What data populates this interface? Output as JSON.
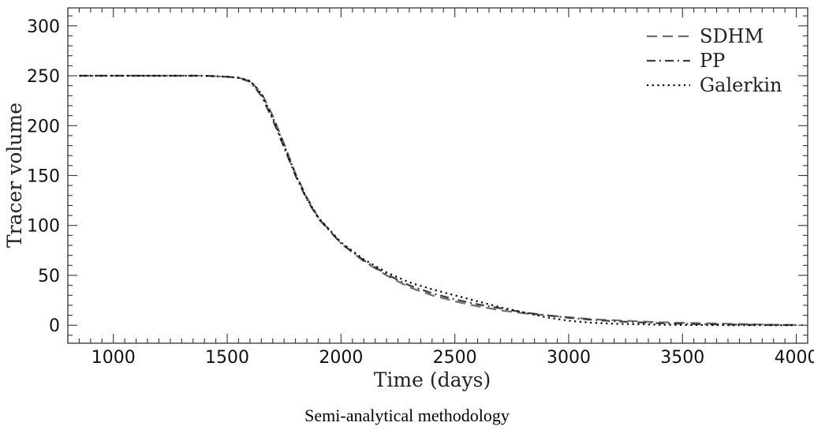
{
  "caption": "Semi-analytical methodology",
  "chart_data": {
    "type": "line",
    "xlabel": "Time (days)",
    "ylabel": "Tracer volume",
    "xlim": [
      800,
      4050
    ],
    "ylim": [
      -18,
      318
    ],
    "x_ticks": [
      1000,
      1500,
      2000,
      2500,
      3000,
      3500,
      4000
    ],
    "y_ticks": [
      0,
      50,
      100,
      150,
      200,
      250,
      300
    ],
    "x_tick_labels": [
      "1000",
      "1500",
      "2000",
      "2500",
      "3000",
      "3500",
      "4000"
    ],
    "y_tick_labels": [
      "0",
      "50",
      "100",
      "150",
      "200",
      "250",
      "300"
    ],
    "grid": false,
    "legend_position": "top-right",
    "series": [
      {
        "name": "SDHM",
        "dash": "dashed",
        "color": "#6e6e6e",
        "x": [
          850,
          1000,
          1200,
          1400,
          1500,
          1550,
          1600,
          1650,
          1700,
          1750,
          1800,
          1850,
          1900,
          2000,
          2100,
          2200,
          2300,
          2400,
          2500,
          2600,
          2700,
          2800,
          2900,
          3000,
          3100,
          3200,
          3300,
          3400,
          3500,
          3600,
          3700,
          3800,
          3900,
          4000,
          4030
        ],
        "y": [
          250,
          250,
          250,
          250,
          249,
          248,
          245,
          233,
          210,
          182,
          152,
          128,
          108,
          82,
          64,
          50,
          38,
          30,
          24,
          19,
          15,
          12,
          10,
          8,
          6,
          5,
          4,
          3,
          2.5,
          2,
          1.5,
          1,
          0.5,
          0.3,
          0.2
        ]
      },
      {
        "name": "PP",
        "dash": "dashdot",
        "color": "#3c3c3c",
        "x": [
          850,
          1000,
          1200,
          1400,
          1500,
          1550,
          1600,
          1650,
          1700,
          1750,
          1800,
          1850,
          1900,
          2000,
          2100,
          2200,
          2300,
          2400,
          2500,
          2600,
          2700,
          2800,
          2900,
          3000,
          3100,
          3200,
          3300,
          3400,
          3500,
          3600,
          3700,
          3800,
          3900,
          4000
        ],
        "y": [
          250,
          250,
          250,
          250,
          249,
          248,
          244,
          230,
          206,
          178,
          150,
          126,
          107,
          82,
          65,
          51,
          40,
          32,
          26,
          21,
          17,
          13,
          10,
          7.5,
          5.5,
          4,
          3,
          2,
          1.5,
          1,
          0.7,
          0.5,
          0.3,
          0.2
        ]
      },
      {
        "name": "Galerkin",
        "dash": "dotted",
        "color": "#000000",
        "x": [
          850,
          1000,
          1200,
          1400,
          1500,
          1550,
          1600,
          1650,
          1700,
          1750,
          1800,
          1850,
          1900,
          2000,
          2100,
          2200,
          2300,
          2400,
          2500,
          2600,
          2700,
          2800,
          2900,
          3000,
          3100,
          3200,
          3300,
          3400,
          3500,
          3600,
          3700,
          3800,
          3900,
          4000
        ],
        "y": [
          250,
          250,
          250,
          250,
          249,
          248,
          245,
          232,
          208,
          180,
          151,
          127,
          108,
          83,
          66,
          53,
          43,
          36,
          30,
          24,
          18,
          13,
          8,
          4.5,
          2.5,
          1.5,
          1,
          0.5,
          0.3,
          0.2,
          0.1,
          0.1,
          0,
          0
        ]
      }
    ]
  }
}
